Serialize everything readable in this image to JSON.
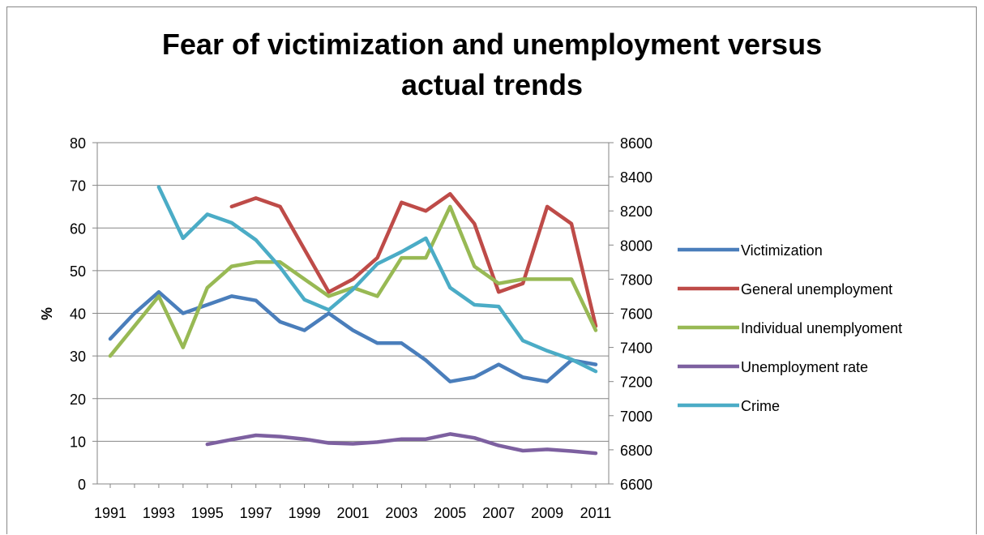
{
  "chart_data": {
    "type": "line",
    "title_line1": "Fear of victimization and unemployment versus",
    "title_line2": "actual trends",
    "ylabel": "%",
    "x": [
      1991,
      1992,
      1993,
      1994,
      1995,
      1996,
      1997,
      1998,
      1999,
      2000,
      2001,
      2002,
      2003,
      2004,
      2005,
      2006,
      2007,
      2008,
      2009,
      2010,
      2011
    ],
    "x_tick_labels": [
      "1991",
      "1993",
      "1995",
      "1997",
      "1999",
      "2001",
      "2003",
      "2005",
      "2007",
      "2009",
      "2011"
    ],
    "ylim": [
      0,
      80
    ],
    "y_ticks": [
      0,
      10,
      20,
      30,
      40,
      50,
      60,
      70,
      80
    ],
    "y2lim": [
      6600,
      8600
    ],
    "y2_ticks": [
      6600,
      6800,
      7000,
      7200,
      7400,
      7600,
      7800,
      8000,
      8200,
      8400,
      8600
    ],
    "grid": true,
    "legend_position": "right",
    "series": [
      {
        "name": "Victimization",
        "axis": "left",
        "color": "#4a7ebb",
        "values": [
          34,
          40,
          45,
          40,
          42,
          44,
          43,
          38,
          36,
          40,
          36,
          33,
          33,
          29,
          24,
          25,
          28,
          25,
          24,
          29,
          28
        ]
      },
      {
        "name": "General unemployment",
        "axis": "left",
        "color": "#be4b48",
        "values": [
          null,
          null,
          null,
          null,
          null,
          65,
          67,
          65,
          55,
          45,
          48,
          53,
          66,
          64,
          68,
          61,
          45,
          47,
          65,
          61,
          37
        ]
      },
      {
        "name": "Individual unemplyoment",
        "axis": "left",
        "color": "#98b954",
        "values": [
          30,
          37,
          44,
          32,
          46,
          51,
          52,
          52,
          48,
          44,
          46,
          44,
          53,
          53,
          65,
          51,
          47,
          48,
          48,
          48,
          36
        ]
      },
      {
        "name": "Unemployment rate",
        "axis": "left",
        "color": "#7d60a0",
        "values": [
          null,
          null,
          null,
          null,
          9.3,
          10.4,
          11.4,
          11.1,
          10.5,
          9.6,
          9.4,
          9.8,
          10.5,
          10.5,
          11.7,
          10.8,
          9,
          7.8,
          8.1,
          7.7,
          7.2
        ]
      },
      {
        "name": "Crime",
        "axis": "right",
        "color": "#4bacc6",
        "values": [
          null,
          null,
          8340,
          8040,
          8180,
          8130,
          8030,
          7870,
          7680,
          7620,
          7740,
          7890,
          7960,
          8040,
          7750,
          7650,
          7640,
          7440,
          7380,
          7330,
          7260
        ]
      }
    ]
  }
}
